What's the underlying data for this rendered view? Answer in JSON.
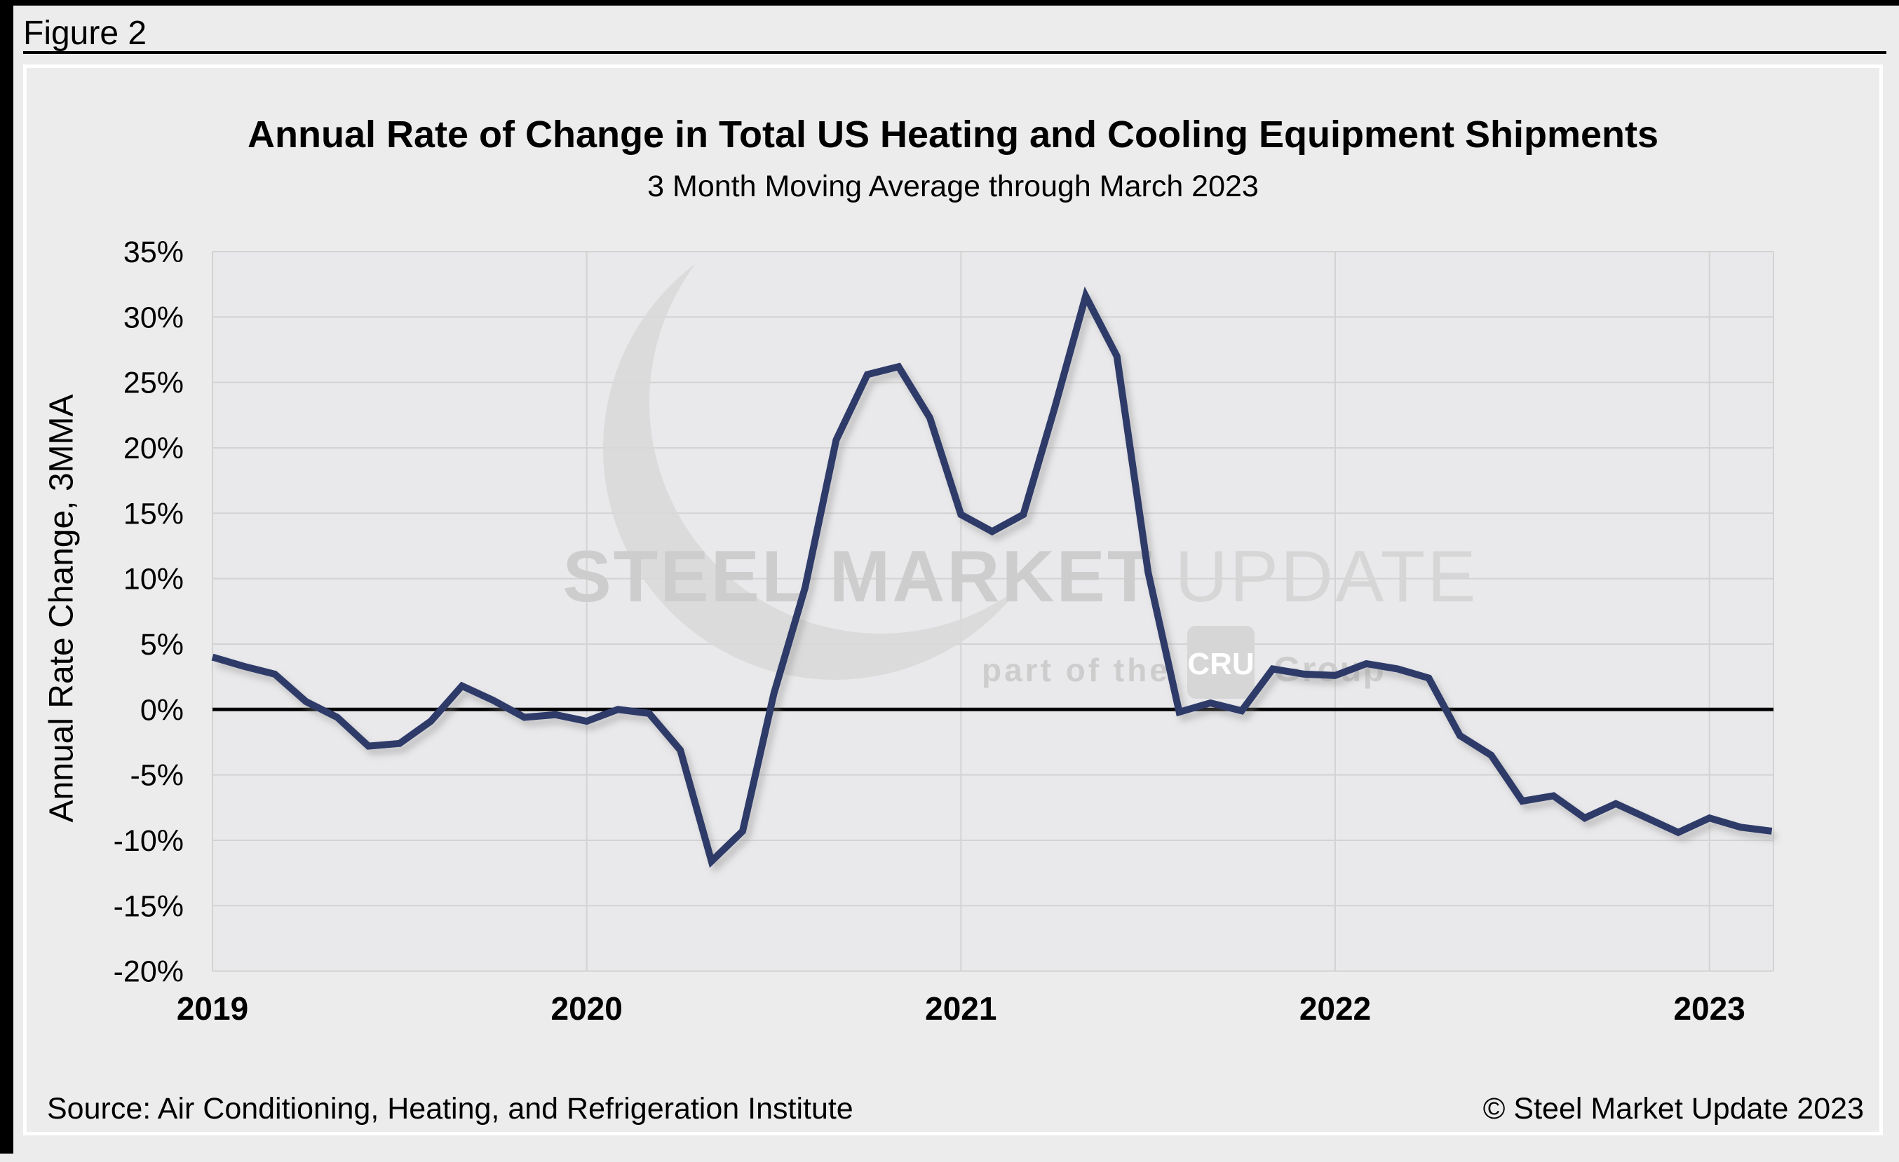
{
  "figure_label": "Figure 2",
  "title": "Annual Rate of Change in Total US Heating and Cooling Equipment Shipments",
  "subtitle": "3 Month Moving Average through March 2023",
  "y_axis_title": "Annual Rate Change, 3MMA",
  "footer": {
    "source": "Source: Air Conditioning, Heating, and Refrigeration Institute",
    "copyright": "© Steel Market Update 2023"
  },
  "watermark": {
    "brand_bold": "STEEL MARKET",
    "brand_light": "UPDATE",
    "tagline": "part of the",
    "badge": "CRU",
    "group": "Group"
  },
  "colors": {
    "background": "#ececec",
    "frame": "#000000",
    "panel_border": "#ffffff",
    "plot_background": "#e9e9eb",
    "grid": "#d3d3d3",
    "zero_line": "#000000",
    "series": "#2e3a69",
    "watermark_gray": "#cdcdcd",
    "swoosh_gray": "#d9d9d9",
    "badge_fill": "#d6d6d6",
    "badge_text": "#ffffff",
    "text": "#000000"
  },
  "chart_data": {
    "type": "line",
    "title": "Annual Rate of Change in Total US Heating and Cooling Equipment Shipments",
    "subtitle": "3 Month Moving Average through March 2023",
    "xlabel": "",
    "ylabel": "Annual Rate Change, 3MMA",
    "ylim": [
      -20,
      35
    ],
    "ytick_step": 5,
    "y_tick_labels": [
      "35%",
      "30%",
      "25%",
      "20%",
      "15%",
      "10%",
      "5%",
      "0%",
      "-5%",
      "-10%",
      "-15%",
      "-20%"
    ],
    "x_tick_labels": [
      "2019",
      "2020",
      "2021",
      "2022",
      "2023"
    ],
    "grid": true,
    "legend": null,
    "frequency": "monthly",
    "start_month": "2019-01",
    "end_month": "2023-03",
    "series": [
      {
        "name": "Annual rate of change, 3MMA",
        "color": "#2e3a69",
        "values": [
          4.0,
          3.3,
          2.7,
          0.6,
          -0.6,
          -2.8,
          -2.6,
          -0.9,
          1.8,
          0.7,
          -0.6,
          -0.4,
          -0.9,
          0.0,
          -0.3,
          -3.1,
          -11.6,
          -9.3,
          1.2,
          9.3,
          20.6,
          25.6,
          26.2,
          22.3,
          14.9,
          13.6,
          14.9,
          23.0,
          31.6,
          27.0,
          10.5,
          -0.2,
          0.5,
          -0.1,
          3.1,
          2.7,
          2.6,
          3.5,
          3.1,
          2.4,
          -2.0,
          -3.5,
          -7.0,
          -6.6,
          -8.3,
          -7.2,
          -8.3,
          -9.4,
          -8.3,
          -9.0,
          -9.3
        ]
      }
    ]
  }
}
